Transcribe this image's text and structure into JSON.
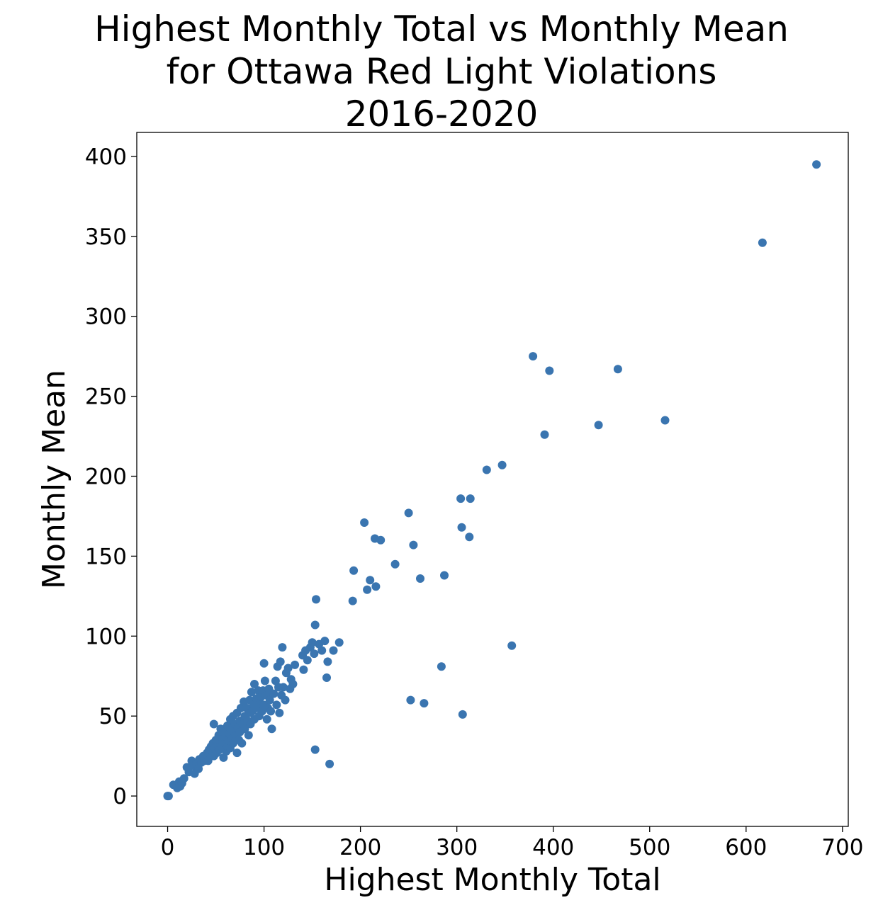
{
  "chart_data": {
    "type": "scatter",
    "title_lines": [
      "Highest Monthly Total vs Monthly Mean",
      "for Ottawa Red Light Violations",
      "2016-2020"
    ],
    "xlabel": "Highest Monthly Total",
    "ylabel": "Monthly Mean",
    "xlim": [
      -32,
      706
    ],
    "ylim": [
      -19,
      415
    ],
    "xticks": [
      0,
      100,
      200,
      300,
      400,
      500,
      600,
      700
    ],
    "yticks": [
      0,
      50,
      100,
      150,
      200,
      250,
      300,
      350,
      400
    ],
    "grid": false,
    "marker_color": "#3a75b0",
    "points": [
      [
        0,
        0
      ],
      [
        1,
        0
      ],
      [
        6,
        7
      ],
      [
        10,
        5
      ],
      [
        12,
        9
      ],
      [
        13,
        6
      ],
      [
        15,
        8
      ],
      [
        17,
        11
      ],
      [
        20,
        18
      ],
      [
        22,
        15
      ],
      [
        25,
        22
      ],
      [
        27,
        19
      ],
      [
        28,
        14
      ],
      [
        30,
        20
      ],
      [
        32,
        17
      ],
      [
        33,
        23
      ],
      [
        35,
        21
      ],
      [
        37,
        25
      ],
      [
        38,
        22
      ],
      [
        40,
        24
      ],
      [
        41,
        27
      ],
      [
        42,
        22
      ],
      [
        43,
        29
      ],
      [
        44,
        26
      ],
      [
        45,
        31
      ],
      [
        46,
        28
      ],
      [
        47,
        33
      ],
      [
        48,
        25
      ],
      [
        48,
        45
      ],
      [
        49,
        30
      ],
      [
        50,
        35
      ],
      [
        51,
        27
      ],
      [
        52,
        32
      ],
      [
        53,
        38
      ],
      [
        54,
        29
      ],
      [
        55,
        34
      ],
      [
        55,
        42
      ],
      [
        56,
        31
      ],
      [
        57,
        36
      ],
      [
        58,
        24
      ],
      [
        58,
        40
      ],
      [
        59,
        33
      ],
      [
        60,
        37
      ],
      [
        61,
        28
      ],
      [
        62,
        44
      ],
      [
        62,
        31
      ],
      [
        63,
        35
      ],
      [
        64,
        39
      ],
      [
        65,
        30
      ],
      [
        65,
        48
      ],
      [
        66,
        42
      ],
      [
        67,
        36
      ],
      [
        68,
        33
      ],
      [
        68,
        50
      ],
      [
        69,
        40
      ],
      [
        70,
        45
      ],
      [
        71,
        38
      ],
      [
        72,
        27
      ],
      [
        72,
        52
      ],
      [
        73,
        43
      ],
      [
        74,
        35
      ],
      [
        75,
        47
      ],
      [
        75,
        40
      ],
      [
        76,
        55
      ],
      [
        77,
        33
      ],
      [
        78,
        45
      ],
      [
        79,
        59
      ],
      [
        80,
        42
      ],
      [
        80,
        50
      ],
      [
        82,
        55
      ],
      [
        83,
        47
      ],
      [
        84,
        38
      ],
      [
        85,
        60
      ],
      [
        85,
        52
      ],
      [
        86,
        45
      ],
      [
        87,
        65
      ],
      [
        88,
        53
      ],
      [
        89,
        57
      ],
      [
        90,
        48
      ],
      [
        90,
        70
      ],
      [
        92,
        61
      ],
      [
        93,
        55
      ],
      [
        94,
        66
      ],
      [
        95,
        50
      ],
      [
        96,
        58
      ],
      [
        97,
        62
      ],
      [
        98,
        53
      ],
      [
        99,
        66
      ],
      [
        100,
        83
      ],
      [
        100,
        57
      ],
      [
        101,
        72
      ],
      [
        102,
        63
      ],
      [
        103,
        48
      ],
      [
        104,
        55
      ],
      [
        105,
        67
      ],
      [
        106,
        60
      ],
      [
        107,
        53
      ],
      [
        108,
        42
      ],
      [
        110,
        64
      ],
      [
        112,
        72
      ],
      [
        113,
        57
      ],
      [
        114,
        81
      ],
      [
        115,
        68
      ],
      [
        116,
        52
      ],
      [
        117,
        84
      ],
      [
        118,
        63
      ],
      [
        119,
        93
      ],
      [
        120,
        68
      ],
      [
        122,
        60
      ],
      [
        123,
        77
      ],
      [
        125,
        80
      ],
      [
        127,
        67
      ],
      [
        128,
        73
      ],
      [
        130,
        70
      ],
      [
        132,
        82
      ],
      [
        140,
        88
      ],
      [
        141,
        79
      ],
      [
        143,
        91
      ],
      [
        145,
        85
      ],
      [
        148,
        93
      ],
      [
        150,
        96
      ],
      [
        152,
        89
      ],
      [
        153,
        107
      ],
      [
        154,
        123
      ],
      [
        157,
        95
      ],
      [
        160,
        91
      ],
      [
        163,
        97
      ],
      [
        165,
        74
      ],
      [
        166,
        84
      ],
      [
        172,
        91
      ],
      [
        178,
        96
      ],
      [
        153,
        29
      ],
      [
        168,
        20
      ],
      [
        192,
        122
      ],
      [
        193,
        141
      ],
      [
        204,
        171
      ],
      [
        207,
        129
      ],
      [
        210,
        135
      ],
      [
        215,
        161
      ],
      [
        216,
        131
      ],
      [
        221,
        160
      ],
      [
        236,
        145
      ],
      [
        250,
        177
      ],
      [
        255,
        157
      ],
      [
        262,
        136
      ],
      [
        287,
        138
      ],
      [
        252,
        60
      ],
      [
        266,
        58
      ],
      [
        284,
        81
      ],
      [
        304,
        186
      ],
      [
        305,
        168
      ],
      [
        306,
        51
      ],
      [
        313,
        162
      ],
      [
        314,
        186
      ],
      [
        331,
        204
      ],
      [
        347,
        207
      ],
      [
        357,
        94
      ],
      [
        379,
        275
      ],
      [
        391,
        226
      ],
      [
        396,
        266
      ],
      [
        447,
        232
      ],
      [
        467,
        267
      ],
      [
        516,
        235
      ],
      [
        617,
        346
      ],
      [
        673,
        395
      ]
    ]
  }
}
